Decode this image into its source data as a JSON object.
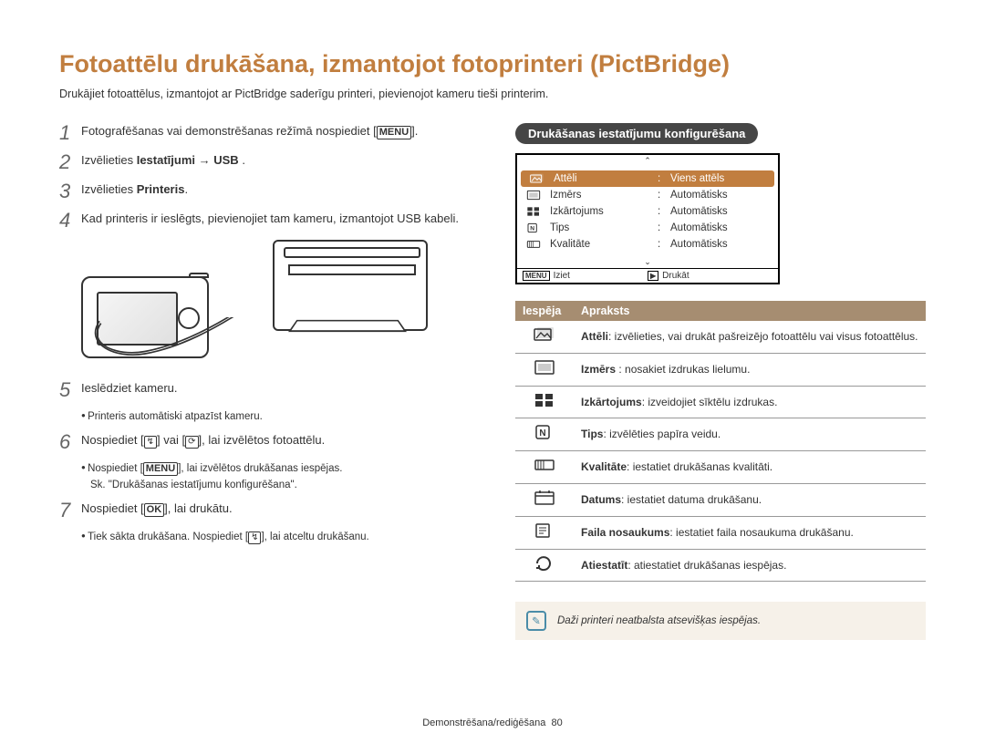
{
  "title": "Fotoattēlu drukāšana, izmantojot fotoprinteri (PictBridge)",
  "subtitle": "Drukājiet fotoattēlus, izmantojot ar PictBridge saderīgu printeri, pievienojot kameru tieši printerim.",
  "steps": {
    "s1_a": "Fotografēšanas vai demonstrēšanas režīmā nospiediet",
    "s1_menu": "MENU",
    "s1_b": ".",
    "s2_a": "Izvēlieties ",
    "s2_b": "Iestatījumi",
    "s2_arrow": "→",
    "s2_c": "USB",
    "s2_d": " .",
    "s3_a": "Izvēlieties ",
    "s3_b": "Printeris",
    "s3_c": ".",
    "s4": "Kad printeris ir ieslēgts, pievienojiet tam kameru, izmantojot USB kabeli.",
    "s5": "Ieslēdziet kameru.",
    "s5_sub": "Printeris automātiski atpazīst kameru.",
    "s6_a": "Nospiediet [",
    "s6_flash": "↯",
    "s6_b": "] vai [",
    "s6_timer": "⟳",
    "s6_c": "], lai izvēlētos fotoattēlu.",
    "s6_sub1_a": "Nospiediet [",
    "s6_sub1_menu": "MENU",
    "s6_sub1_b": "], lai izvēlētos drukāšanas iespējas.",
    "s6_sub2": "Sk. \"Drukāšanas iestatījumu konfigurēšana\".",
    "s7_a": "Nospiediet [",
    "s7_ok": "OK",
    "s7_b": "], lai drukātu.",
    "s7_sub_a": "Tiek sākta drukāšana. Nospiediet [",
    "s7_sub_flash": "↯",
    "s7_sub_b": "], lai atceltu drukāšanu."
  },
  "right": {
    "section_title": "Drukāšanas iestatījumu konfigurēšana",
    "screen": {
      "rows": [
        {
          "icon": "pictures",
          "label": "Attēli",
          "val": "Viens attēls",
          "sel": true
        },
        {
          "icon": "size",
          "label": "Izmērs",
          "val": "Automātisks",
          "sel": false
        },
        {
          "icon": "layout",
          "label": "Izkārtojums",
          "val": "Automātisks",
          "sel": false
        },
        {
          "icon": "type",
          "label": "Tips",
          "val": "Automātisks",
          "sel": false
        },
        {
          "icon": "quality",
          "label": "Kvalitāte",
          "val": "Automātisks",
          "sel": false
        }
      ],
      "footer_left_label": "Iziet",
      "footer_left_ic": "MENU",
      "footer_right_label": "Drukāt",
      "footer_right_ic": "▶"
    },
    "table": {
      "h1": "Iespēja",
      "h2": "Apraksts",
      "rows": [
        {
          "icon": "pictures",
          "bold": "Attēli",
          "text": ": izvēlieties, vai drukāt pašreizējo fotoattēlu vai visus fotoattēlus."
        },
        {
          "icon": "size",
          "bold": "Izmērs",
          "text": " : nosakiet izdrukas lielumu."
        },
        {
          "icon": "layout",
          "bold": "Izkārtojums",
          "text": ": izveidojiet sīktēlu izdrukas."
        },
        {
          "icon": "type",
          "bold": "Tips",
          "text": ": izvēlēties papīra veidu."
        },
        {
          "icon": "quality",
          "bold": "Kvalitāte",
          "text": ": iestatiet drukāšanas kvalitāti."
        },
        {
          "icon": "date",
          "bold": "Datums",
          "text": ": iestatiet datuma drukāšanu."
        },
        {
          "icon": "filename",
          "bold": "Faila nosaukums",
          "text": ": iestatiet faila nosaukuma drukāšanu."
        },
        {
          "icon": "reset",
          "bold": "Atiestatīt",
          "text": ": atiestatiet drukāšanas iespējas."
        }
      ]
    },
    "note": "Daži printeri neatbalsta atsevišķas iespējas."
  },
  "footer": {
    "section": "Demonstrēšana/rediģēšana",
    "page": "80"
  },
  "colors": {
    "accent": "#c17e3f",
    "table_header": "#a68d71",
    "dark_pill": "#464646",
    "note_bg": "#f6f1e9",
    "note_ic": "#4a8ca8"
  }
}
